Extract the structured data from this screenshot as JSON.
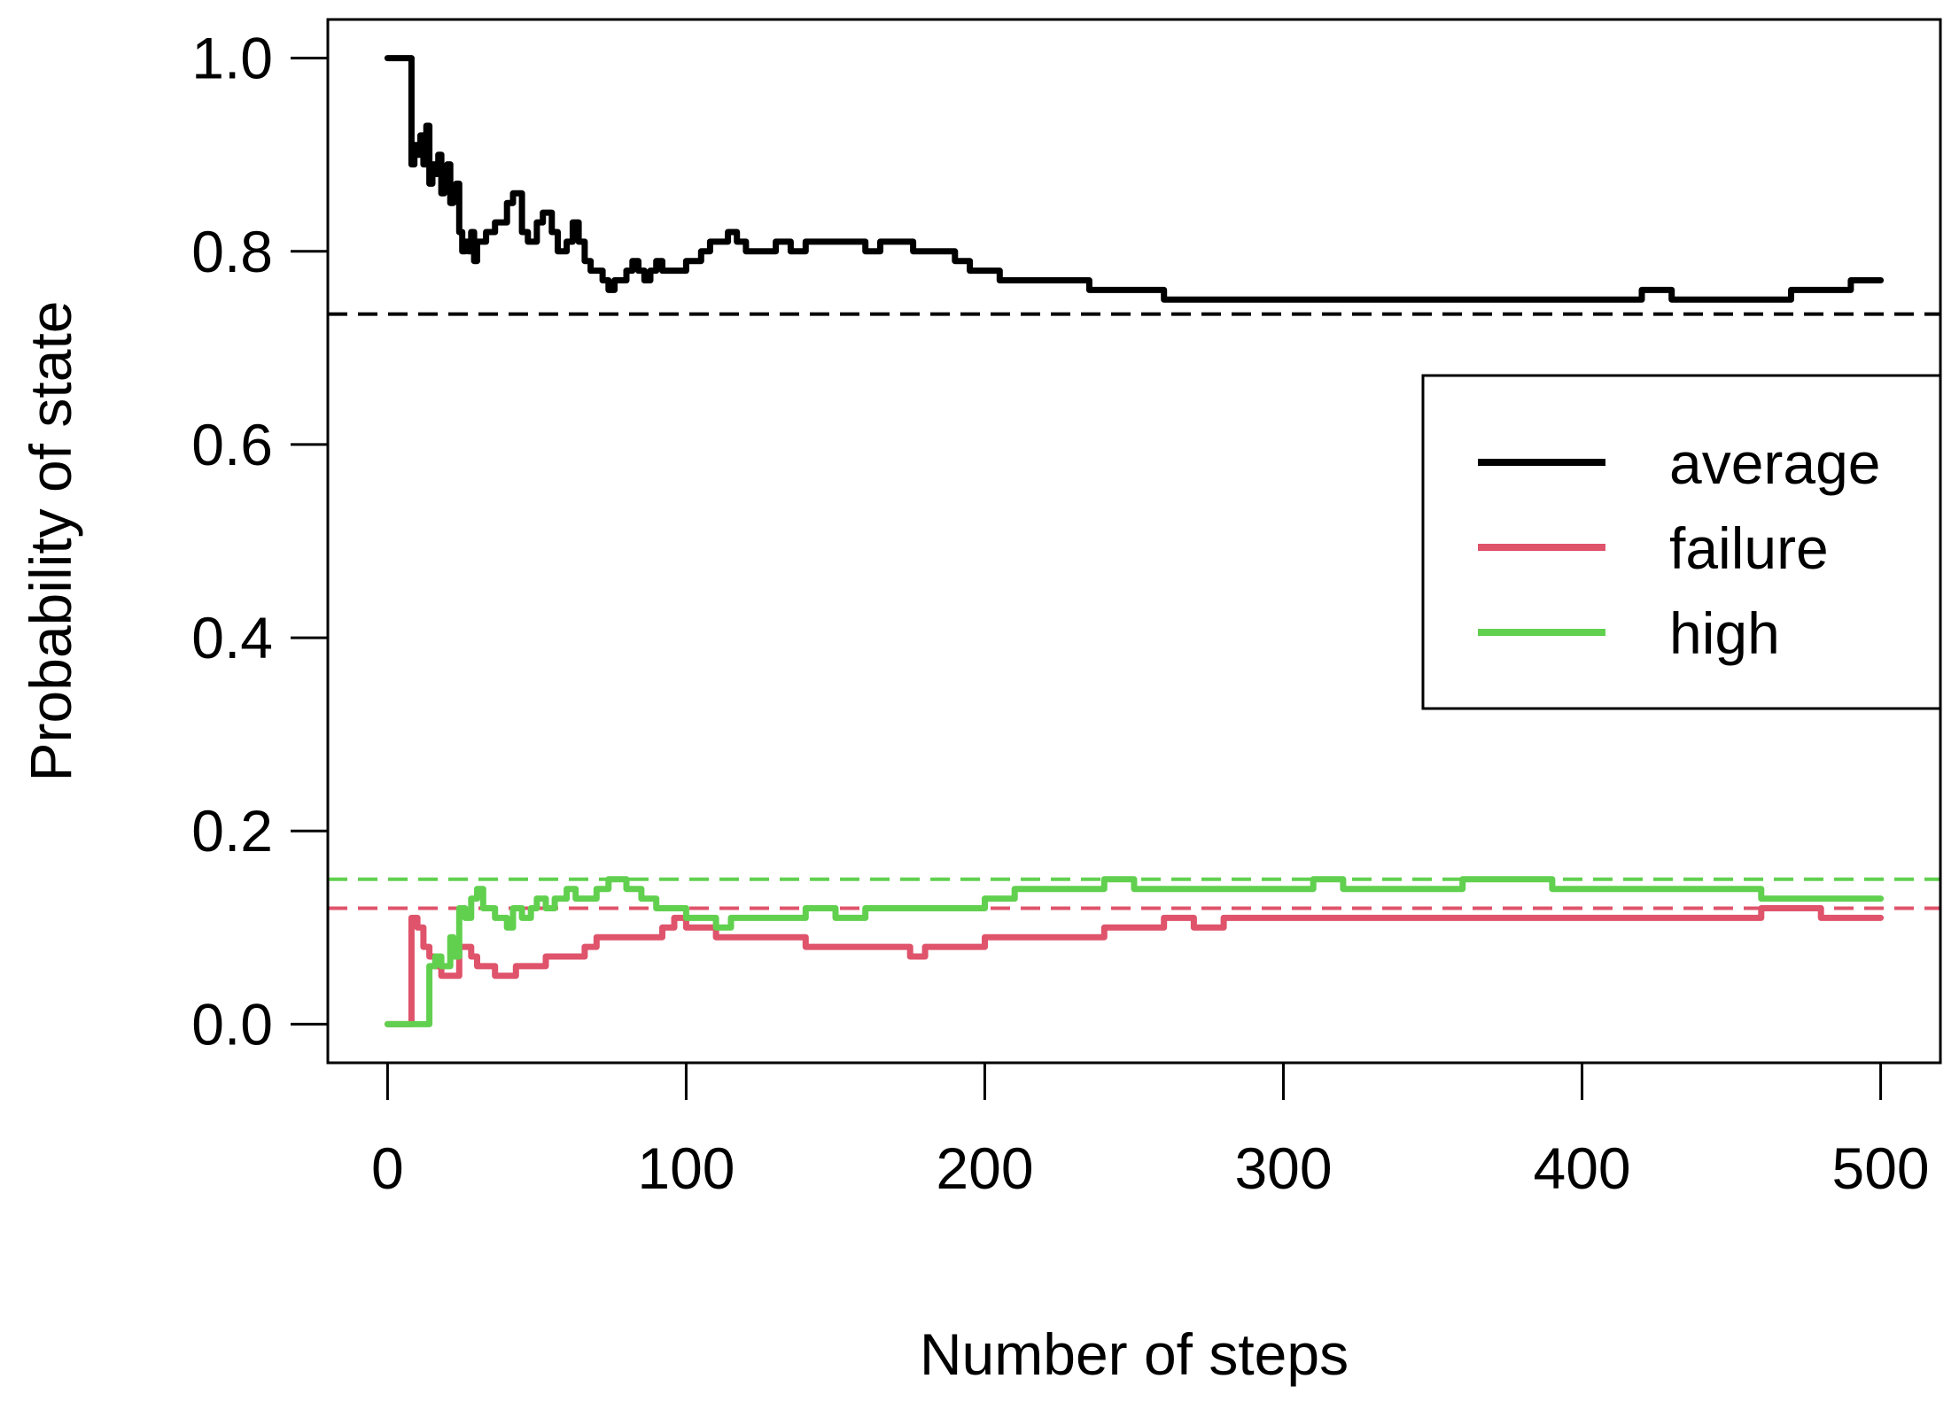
{
  "chart_data": {
    "type": "line",
    "title": "",
    "xlabel": "Number of steps",
    "ylabel": "Probability of state",
    "xlim": [
      -20,
      520
    ],
    "ylim": [
      -0.04,
      1.04
    ],
    "x_ticks": [
      0,
      100,
      200,
      300,
      400,
      500
    ],
    "x_tick_labels": [
      "0",
      "100",
      "200",
      "300",
      "400",
      "500"
    ],
    "y_ticks": [
      0.0,
      0.2,
      0.4,
      0.6,
      0.8,
      1.0
    ],
    "y_tick_labels": [
      "0.0",
      "0.2",
      "0.4",
      "0.6",
      "0.8",
      "1.0"
    ],
    "grid": false,
    "legend_position": "right, middle",
    "series": [
      {
        "name": "average",
        "color": "#000000",
        "style": "solid",
        "x": [
          0,
          3,
          6,
          7,
          8,
          9,
          10,
          11,
          12,
          13,
          14,
          15,
          16,
          17,
          18,
          19,
          20,
          21,
          22,
          23,
          24,
          25,
          26,
          27,
          28,
          29,
          30,
          33,
          36,
          40,
          42,
          45,
          47,
          50,
          52,
          55,
          57,
          60,
          62,
          64,
          66,
          68,
          70,
          72,
          74,
          76,
          78,
          80,
          82,
          84,
          86,
          88,
          90,
          92,
          95,
          100,
          105,
          108,
          111,
          114,
          117,
          120,
          125,
          130,
          135,
          140,
          145,
          150,
          155,
          160,
          165,
          170,
          173,
          176,
          180,
          185,
          190,
          195,
          200,
          205,
          210,
          215,
          220,
          225,
          230,
          235,
          240,
          245,
          250,
          255,
          260,
          265,
          270,
          275,
          280,
          290,
          300,
          310,
          320,
          330,
          340,
          350,
          360,
          370,
          380,
          390,
          400,
          410,
          420,
          430,
          440,
          450,
          460,
          470,
          480,
          490,
          500
        ],
        "y": [
          1.0,
          1.0,
          1.0,
          1.0,
          0.89,
          0.91,
          0.9,
          0.92,
          0.89,
          0.93,
          0.87,
          0.89,
          0.88,
          0.9,
          0.86,
          0.87,
          0.89,
          0.85,
          0.86,
          0.87,
          0.82,
          0.8,
          0.81,
          0.8,
          0.82,
          0.79,
          0.81,
          0.82,
          0.83,
          0.85,
          0.86,
          0.82,
          0.81,
          0.83,
          0.84,
          0.82,
          0.8,
          0.81,
          0.83,
          0.81,
          0.79,
          0.78,
          0.78,
          0.77,
          0.76,
          0.77,
          0.77,
          0.78,
          0.79,
          0.78,
          0.77,
          0.78,
          0.79,
          0.78,
          0.78,
          0.79,
          0.8,
          0.81,
          0.81,
          0.82,
          0.81,
          0.8,
          0.8,
          0.81,
          0.8,
          0.81,
          0.81,
          0.81,
          0.81,
          0.8,
          0.81,
          0.81,
          0.81,
          0.8,
          0.8,
          0.8,
          0.79,
          0.78,
          0.78,
          0.77,
          0.77,
          0.77,
          0.77,
          0.77,
          0.77,
          0.76,
          0.76,
          0.76,
          0.76,
          0.76,
          0.75,
          0.75,
          0.75,
          0.75,
          0.75,
          0.75,
          0.75,
          0.75,
          0.75,
          0.75,
          0.75,
          0.75,
          0.75,
          0.75,
          0.75,
          0.75,
          0.75,
          0.75,
          0.76,
          0.75,
          0.75,
          0.75,
          0.75,
          0.76,
          0.76,
          0.77,
          0.77
        ]
      },
      {
        "name": "failure",
        "color": "#DF536B",
        "style": "solid",
        "x": [
          0,
          4,
          7,
          8,
          10,
          12,
          14,
          16,
          18,
          20,
          22,
          24,
          26,
          28,
          30,
          33,
          36,
          40,
          43,
          46,
          50,
          53,
          56,
          60,
          63,
          66,
          70,
          73,
          76,
          80,
          84,
          88,
          92,
          96,
          100,
          105,
          110,
          115,
          120,
          130,
          140,
          150,
          160,
          170,
          175,
          180,
          190,
          200,
          210,
          220,
          230,
          240,
          250,
          260,
          270,
          280,
          290,
          300,
          310,
          320,
          330,
          340,
          350,
          360,
          370,
          380,
          390,
          400,
          410,
          420,
          430,
          440,
          450,
          460,
          470,
          480,
          490,
          500
        ],
        "y": [
          0.0,
          0.0,
          0.0,
          0.11,
          0.1,
          0.08,
          0.07,
          0.06,
          0.05,
          0.05,
          0.05,
          0.08,
          0.08,
          0.07,
          0.06,
          0.06,
          0.05,
          0.05,
          0.06,
          0.06,
          0.06,
          0.07,
          0.07,
          0.07,
          0.07,
          0.08,
          0.09,
          0.09,
          0.09,
          0.09,
          0.09,
          0.09,
          0.1,
          0.11,
          0.1,
          0.1,
          0.09,
          0.09,
          0.09,
          0.09,
          0.08,
          0.08,
          0.08,
          0.08,
          0.07,
          0.08,
          0.08,
          0.09,
          0.09,
          0.09,
          0.09,
          0.1,
          0.1,
          0.11,
          0.1,
          0.11,
          0.11,
          0.11,
          0.11,
          0.11,
          0.11,
          0.11,
          0.11,
          0.11,
          0.11,
          0.11,
          0.11,
          0.11,
          0.11,
          0.11,
          0.11,
          0.11,
          0.11,
          0.12,
          0.12,
          0.11,
          0.11,
          0.11
        ]
      },
      {
        "name": "high",
        "color": "#61D04F",
        "style": "solid",
        "x": [
          0,
          5,
          10,
          13,
          14,
          16,
          18,
          20,
          21,
          22,
          24,
          26,
          28,
          30,
          32,
          34,
          36,
          38,
          40,
          42,
          45,
          48,
          50,
          53,
          56,
          60,
          63,
          66,
          70,
          72,
          74,
          76,
          80,
          85,
          90,
          95,
          100,
          105,
          110,
          115,
          120,
          130,
          140,
          150,
          160,
          170,
          175,
          180,
          190,
          200,
          210,
          220,
          230,
          240,
          250,
          260,
          270,
          280,
          290,
          300,
          310,
          320,
          330,
          340,
          350,
          360,
          370,
          380,
          390,
          400,
          410,
          420,
          430,
          440,
          450,
          460,
          470,
          480,
          490,
          500
        ],
        "y": [
          0.0,
          0.0,
          0.0,
          0.0,
          0.06,
          0.07,
          0.06,
          0.06,
          0.09,
          0.07,
          0.12,
          0.11,
          0.13,
          0.14,
          0.12,
          0.12,
          0.11,
          0.11,
          0.1,
          0.12,
          0.11,
          0.12,
          0.13,
          0.12,
          0.13,
          0.14,
          0.13,
          0.13,
          0.14,
          0.14,
          0.15,
          0.15,
          0.14,
          0.13,
          0.12,
          0.12,
          0.11,
          0.11,
          0.1,
          0.11,
          0.11,
          0.11,
          0.12,
          0.11,
          0.12,
          0.12,
          0.12,
          0.12,
          0.12,
          0.13,
          0.14,
          0.14,
          0.14,
          0.15,
          0.14,
          0.14,
          0.14,
          0.14,
          0.14,
          0.14,
          0.15,
          0.14,
          0.14,
          0.14,
          0.14,
          0.15,
          0.15,
          0.15,
          0.14,
          0.14,
          0.14,
          0.14,
          0.14,
          0.14,
          0.14,
          0.13,
          0.13,
          0.13,
          0.13,
          0.13
        ]
      }
    ],
    "reference_lines": [
      {
        "series": "average",
        "y": 0.735,
        "color": "#000000",
        "style": "dashed"
      },
      {
        "series": "high",
        "y": 0.15,
        "color": "#61D04F",
        "style": "dashed"
      },
      {
        "series": "failure",
        "y": 0.12,
        "color": "#DF536B",
        "style": "dashed"
      }
    ]
  }
}
